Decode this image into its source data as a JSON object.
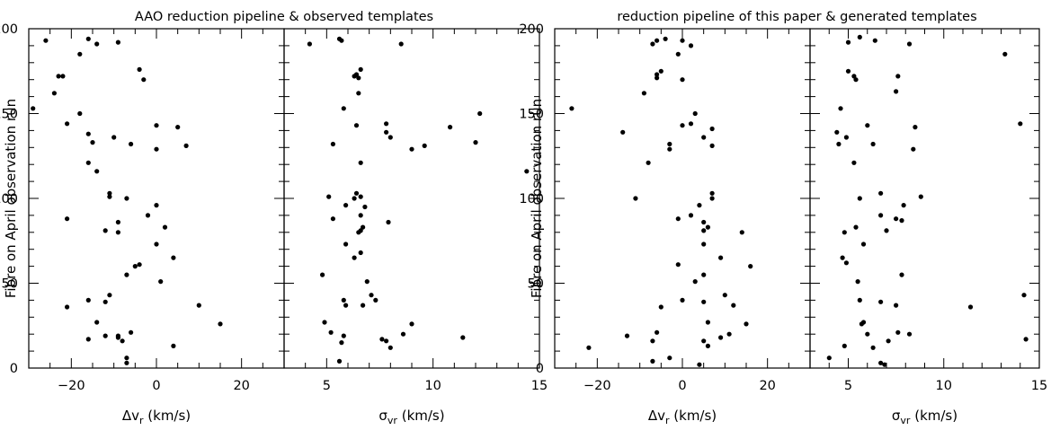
{
  "chart_data": [
    {
      "type": "scatter",
      "title": "AAO reduction pipeline & observed templates",
      "ylabel": "Fibre on April observation run",
      "yticks": [
        0,
        50,
        100,
        150,
        200
      ],
      "ylim": [
        0,
        200
      ],
      "grid": false,
      "panels": [
        {
          "xlabel": {
            "main": "Δv",
            "sub": "r",
            "unit": " (km/s)"
          },
          "xlim": [
            -30,
            30
          ],
          "xticks": [
            -20,
            0,
            20
          ],
          "points": [
            [
              -26,
              193
            ],
            [
              -16,
              194
            ],
            [
              -9,
              192
            ],
            [
              -14,
              191
            ],
            [
              -18,
              185
            ],
            [
              -23,
              172
            ],
            [
              -22,
              172
            ],
            [
              -4,
              176
            ],
            [
              -3,
              170
            ],
            [
              -24,
              162
            ],
            [
              -29,
              153
            ],
            [
              -18,
              150
            ],
            [
              -21,
              144
            ],
            [
              0,
              143
            ],
            [
              5,
              142
            ],
            [
              -16,
              138
            ],
            [
              -10,
              136
            ],
            [
              -15,
              133
            ],
            [
              -6,
              132
            ],
            [
              7,
              131
            ],
            [
              0,
              129
            ],
            [
              -16,
              121
            ],
            [
              -14,
              116
            ],
            [
              -11,
              103
            ],
            [
              -11,
              101
            ],
            [
              -7,
              100
            ],
            [
              0,
              96
            ],
            [
              -2,
              90
            ],
            [
              -21,
              88
            ],
            [
              -9,
              86
            ],
            [
              -12,
              81
            ],
            [
              -9,
              80
            ],
            [
              2,
              83
            ],
            [
              0,
              73
            ],
            [
              4,
              65
            ],
            [
              -4,
              61
            ],
            [
              -5,
              60
            ],
            [
              -7,
              55
            ],
            [
              1,
              51
            ],
            [
              -11,
              43
            ],
            [
              -16,
              40
            ],
            [
              -12,
              39
            ],
            [
              10,
              37
            ],
            [
              -21,
              36
            ],
            [
              -14,
              27
            ],
            [
              15,
              26
            ],
            [
              -6,
              21
            ],
            [
              -12,
              19
            ],
            [
              -9,
              19
            ],
            [
              -9,
              18
            ],
            [
              -16,
              17
            ],
            [
              -8,
              16
            ],
            [
              4,
              13
            ],
            [
              -7,
              6
            ],
            [
              -7,
              3
            ]
          ]
        },
        {
          "xlabel": {
            "main": "σ",
            "sub": "vr",
            "unit": " (km/s)"
          },
          "xlim": [
            3,
            15
          ],
          "xticks": [
            5,
            10,
            15
          ],
          "points": [
            [
              5.6,
              194
            ],
            [
              5.7,
              193
            ],
            [
              4.2,
              191
            ],
            [
              8.5,
              191
            ],
            [
              6.6,
              176
            ],
            [
              6.4,
              173
            ],
            [
              6.3,
              172
            ],
            [
              6.5,
              171
            ],
            [
              6.5,
              162
            ],
            [
              5.8,
              153
            ],
            [
              12.2,
              150
            ],
            [
              7.8,
              144
            ],
            [
              6.4,
              143
            ],
            [
              10.8,
              142
            ],
            [
              7.8,
              139
            ],
            [
              8.0,
              136
            ],
            [
              12.0,
              133
            ],
            [
              5.3,
              132
            ],
            [
              9.6,
              131
            ],
            [
              9.0,
              129
            ],
            [
              6.6,
              121
            ],
            [
              14.4,
              116
            ],
            [
              6.4,
              103
            ],
            [
              5.1,
              101
            ],
            [
              6.6,
              101
            ],
            [
              6.3,
              100
            ],
            [
              5.9,
              96
            ],
            [
              6.8,
              95
            ],
            [
              6.6,
              90
            ],
            [
              5.3,
              88
            ],
            [
              7.9,
              86
            ],
            [
              6.7,
              83
            ],
            [
              6.6,
              81
            ],
            [
              6.5,
              80
            ],
            [
              5.9,
              73
            ],
            [
              6.6,
              68
            ],
            [
              6.3,
              65
            ],
            [
              4.8,
              55
            ],
            [
              6.9,
              51
            ],
            [
              7.1,
              43
            ],
            [
              5.8,
              40
            ],
            [
              7.3,
              40
            ],
            [
              5.9,
              37
            ],
            [
              6.7,
              37
            ],
            [
              4.9,
              27
            ],
            [
              9.0,
              26
            ],
            [
              5.2,
              21
            ],
            [
              8.6,
              20
            ],
            [
              5.8,
              19
            ],
            [
              7.6,
              17
            ],
            [
              11.4,
              18
            ],
            [
              7.8,
              16
            ],
            [
              5.7,
              15
            ],
            [
              8.0,
              12
            ],
            [
              5.6,
              4
            ]
          ]
        }
      ]
    },
    {
      "type": "scatter",
      "title": "reduction pipeline of this paper & generated templates",
      "ylabel": "Fibre on April observation run",
      "yticks": [
        0,
        50,
        100,
        150,
        200
      ],
      "ylim": [
        0,
        200
      ],
      "grid": false,
      "panels": [
        {
          "xlabel": {
            "main": "Δv",
            "sub": "r",
            "unit": " (km/s)"
          },
          "xlim": [
            -30,
            30
          ],
          "xticks": [
            -20,
            0,
            20
          ],
          "points": [
            [
              -4,
              194
            ],
            [
              -6,
              193
            ],
            [
              0,
              193
            ],
            [
              2,
              190
            ],
            [
              -7,
              191
            ],
            [
              -1,
              185
            ],
            [
              -5,
              175
            ],
            [
              -6,
              173
            ],
            [
              -6,
              171
            ],
            [
              0,
              170
            ],
            [
              -9,
              162
            ],
            [
              -26,
              153
            ],
            [
              3,
              150
            ],
            [
              2,
              144
            ],
            [
              0,
              143
            ],
            [
              7,
              141
            ],
            [
              -14,
              139
            ],
            [
              5,
              136
            ],
            [
              -3,
              132
            ],
            [
              -3,
              129
            ],
            [
              7,
              131
            ],
            [
              -8,
              121
            ],
            [
              7,
              103
            ],
            [
              7,
              100
            ],
            [
              -11,
              100
            ],
            [
              4,
              96
            ],
            [
              2,
              90
            ],
            [
              -1,
              88
            ],
            [
              5,
              86
            ],
            [
              6,
              83
            ],
            [
              5,
              81
            ],
            [
              14,
              80
            ],
            [
              5,
              73
            ],
            [
              9,
              65
            ],
            [
              16,
              60
            ],
            [
              -1,
              61
            ],
            [
              3,
              51
            ],
            [
              5,
              55
            ],
            [
              10,
              43
            ],
            [
              0,
              40
            ],
            [
              5,
              39
            ],
            [
              12,
              37
            ],
            [
              -5,
              36
            ],
            [
              15,
              26
            ],
            [
              6,
              27
            ],
            [
              -6,
              21
            ],
            [
              -13,
              19
            ],
            [
              11,
              20
            ],
            [
              9,
              18
            ],
            [
              -7,
              16
            ],
            [
              5,
              16
            ],
            [
              -22,
              12
            ],
            [
              6,
              13
            ],
            [
              -3,
              6
            ],
            [
              -7,
              4
            ],
            [
              4,
              2
            ]
          ]
        },
        {
          "xlabel": {
            "main": "σ",
            "sub": "vr",
            "unit": " (km/s)"
          },
          "xlim": [
            3,
            15
          ],
          "xticks": [
            5,
            10,
            15
          ],
          "points": [
            [
              5.6,
              195
            ],
            [
              5.0,
              192
            ],
            [
              6.4,
              193
            ],
            [
              8.2,
              191
            ],
            [
              7.6,
              172
            ],
            [
              5.0,
              175
            ],
            [
              5.3,
              172
            ],
            [
              5.4,
              170
            ],
            [
              13.2,
              185
            ],
            [
              7.5,
              163
            ],
            [
              4.6,
              153
            ],
            [
              6.0,
              143
            ],
            [
              14.0,
              144
            ],
            [
              8.5,
              142
            ],
            [
              4.4,
              139
            ],
            [
              4.9,
              136
            ],
            [
              4.5,
              132
            ],
            [
              6.3,
              132
            ],
            [
              8.4,
              129
            ],
            [
              5.3,
              121
            ],
            [
              6.7,
              103
            ],
            [
              8.8,
              101
            ],
            [
              5.6,
              100
            ],
            [
              7.9,
              96
            ],
            [
              6.7,
              90
            ],
            [
              7.5,
              88
            ],
            [
              7.8,
              87
            ],
            [
              5.4,
              83
            ],
            [
              7.0,
              81
            ],
            [
              4.8,
              80
            ],
            [
              5.8,
              73
            ],
            [
              4.7,
              65
            ],
            [
              4.9,
              62
            ],
            [
              7.8,
              55
            ],
            [
              5.5,
              51
            ],
            [
              14.2,
              43
            ],
            [
              5.6,
              40
            ],
            [
              6.7,
              39
            ],
            [
              7.5,
              37
            ],
            [
              11.4,
              36
            ],
            [
              5.8,
              27
            ],
            [
              5.7,
              26
            ],
            [
              6.0,
              20
            ],
            [
              7.6,
              21
            ],
            [
              8.2,
              20
            ],
            [
              14.3,
              17
            ],
            [
              7.1,
              16
            ],
            [
              4.8,
              13
            ],
            [
              6.3,
              12
            ],
            [
              4.0,
              6
            ],
            [
              6.7,
              3
            ],
            [
              6.9,
              2
            ]
          ]
        }
      ]
    }
  ]
}
